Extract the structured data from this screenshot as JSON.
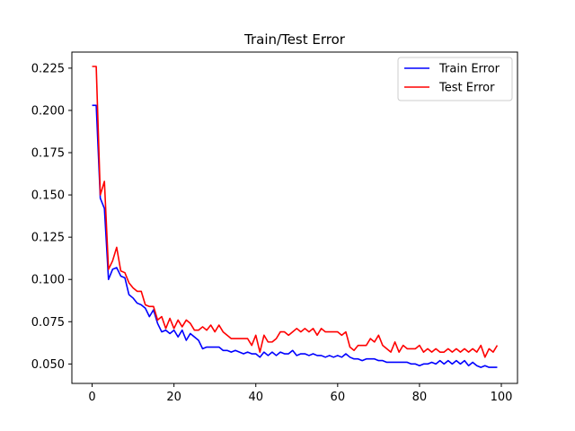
{
  "chart_data": {
    "type": "line",
    "title": "Train/Test Error",
    "xlabel": "",
    "ylabel": "",
    "xlim": [
      -4.95,
      103.95
    ],
    "ylim": [
      0.0385,
      0.2345
    ],
    "xticks": [
      0,
      20,
      40,
      60,
      80,
      100
    ],
    "xtick_labels": [
      "0",
      "20",
      "40",
      "60",
      "80",
      "100"
    ],
    "yticks": [
      0.05,
      0.075,
      0.1,
      0.125,
      0.15,
      0.175,
      0.2,
      0.225
    ],
    "ytick_labels": [
      "0.050",
      "0.075",
      "0.100",
      "0.125",
      "0.150",
      "0.175",
      "0.200",
      "0.225"
    ],
    "grid": false,
    "legend_position": "top-right",
    "series": [
      {
        "name": "Train Error",
        "color": "#0000ff",
        "x": [
          0,
          1,
          2,
          3,
          4,
          5,
          6,
          7,
          8,
          9,
          10,
          11,
          12,
          13,
          14,
          15,
          16,
          17,
          18,
          19,
          20,
          21,
          22,
          23,
          24,
          25,
          26,
          27,
          28,
          29,
          30,
          31,
          32,
          33,
          34,
          35,
          36,
          37,
          38,
          39,
          40,
          41,
          42,
          43,
          44,
          45,
          46,
          47,
          48,
          49,
          50,
          51,
          52,
          53,
          54,
          55,
          56,
          57,
          58,
          59,
          60,
          61,
          62,
          63,
          64,
          65,
          66,
          67,
          68,
          69,
          70,
          71,
          72,
          73,
          74,
          75,
          76,
          77,
          78,
          79,
          80,
          81,
          82,
          83,
          84,
          85,
          86,
          87,
          88,
          89,
          90,
          91,
          92,
          93,
          94,
          95,
          96,
          97,
          98,
          99
        ],
        "values": [
          0.203,
          0.203,
          0.148,
          0.142,
          0.1,
          0.106,
          0.107,
          0.102,
          0.101,
          0.091,
          0.089,
          0.086,
          0.085,
          0.083,
          0.078,
          0.082,
          0.074,
          0.069,
          0.07,
          0.068,
          0.07,
          0.066,
          0.07,
          0.064,
          0.068,
          0.066,
          0.064,
          0.059,
          0.06,
          0.06,
          0.06,
          0.06,
          0.058,
          0.058,
          0.057,
          0.058,
          0.057,
          0.056,
          0.057,
          0.056,
          0.056,
          0.054,
          0.057,
          0.055,
          0.057,
          0.055,
          0.057,
          0.056,
          0.056,
          0.058,
          0.055,
          0.056,
          0.056,
          0.055,
          0.056,
          0.055,
          0.055,
          0.054,
          0.055,
          0.054,
          0.055,
          0.054,
          0.056,
          0.054,
          0.053,
          0.053,
          0.052,
          0.053,
          0.053,
          0.053,
          0.052,
          0.052,
          0.051,
          0.051,
          0.051,
          0.051,
          0.051,
          0.051,
          0.05,
          0.05,
          0.049,
          0.05,
          0.05,
          0.051,
          0.05,
          0.052,
          0.05,
          0.052,
          0.05,
          0.052,
          0.05,
          0.052,
          0.049,
          0.051,
          0.049,
          0.048,
          0.049,
          0.048,
          0.048,
          0.048
        ]
      },
      {
        "name": "Test Error",
        "color": "#ff0000",
        "x": [
          0,
          1,
          2,
          3,
          4,
          5,
          6,
          7,
          8,
          9,
          10,
          11,
          12,
          13,
          14,
          15,
          16,
          17,
          18,
          19,
          20,
          21,
          22,
          23,
          24,
          25,
          26,
          27,
          28,
          29,
          30,
          31,
          32,
          33,
          34,
          35,
          36,
          37,
          38,
          39,
          40,
          41,
          42,
          43,
          44,
          45,
          46,
          47,
          48,
          49,
          50,
          51,
          52,
          53,
          54,
          55,
          56,
          57,
          58,
          59,
          60,
          61,
          62,
          63,
          64,
          65,
          66,
          67,
          68,
          69,
          70,
          71,
          72,
          73,
          74,
          75,
          76,
          77,
          78,
          79,
          80,
          81,
          82,
          83,
          84,
          85,
          86,
          87,
          88,
          89,
          90,
          91,
          92,
          93,
          94,
          95,
          96,
          97,
          98,
          99
        ],
        "values": [
          0.226,
          0.226,
          0.15,
          0.158,
          0.106,
          0.111,
          0.119,
          0.105,
          0.104,
          0.098,
          0.095,
          0.093,
          0.093,
          0.085,
          0.084,
          0.084,
          0.076,
          0.078,
          0.071,
          0.077,
          0.071,
          0.076,
          0.072,
          0.076,
          0.074,
          0.07,
          0.07,
          0.072,
          0.07,
          0.073,
          0.069,
          0.073,
          0.069,
          0.067,
          0.065,
          0.065,
          0.065,
          0.065,
          0.065,
          0.061,
          0.067,
          0.057,
          0.067,
          0.063,
          0.063,
          0.065,
          0.069,
          0.069,
          0.067,
          0.069,
          0.071,
          0.069,
          0.071,
          0.069,
          0.071,
          0.067,
          0.071,
          0.069,
          0.069,
          0.069,
          0.069,
          0.067,
          0.069,
          0.06,
          0.058,
          0.061,
          0.061,
          0.061,
          0.065,
          0.063,
          0.067,
          0.061,
          0.059,
          0.057,
          0.063,
          0.057,
          0.061,
          0.059,
          0.059,
          0.059,
          0.061,
          0.057,
          0.059,
          0.057,
          0.059,
          0.057,
          0.057,
          0.059,
          0.057,
          0.059,
          0.057,
          0.059,
          0.057,
          0.059,
          0.057,
          0.061,
          0.054,
          0.059,
          0.057,
          0.061
        ]
      }
    ]
  }
}
